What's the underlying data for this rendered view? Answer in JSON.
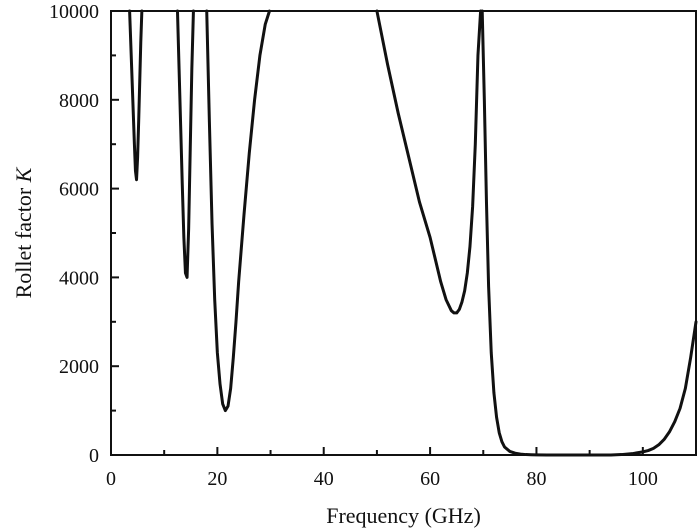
{
  "chart_data": {
    "type": "line",
    "title": "",
    "xlabel": "Frequency (GHz)",
    "ylabel_main": "Rollet factor ",
    "ylabel_var": "K",
    "xlim": [
      0,
      110
    ],
    "ylim": [
      0,
      10000
    ],
    "x_ticks": [
      "0",
      "20",
      "40",
      "60",
      "80",
      "100"
    ],
    "y_ticks": [
      "0",
      "2000",
      "4000",
      "6000",
      "8000",
      "10000"
    ],
    "grid": false,
    "colors": {
      "line": "#111111",
      "axes": "#111111",
      "background": "#ffffff"
    },
    "series": [
      {
        "name": "",
        "x": [
          3.5,
          3.8,
          4.1,
          4.4,
          4.6,
          4.8,
          5.0,
          5.2,
          5.4,
          5.6,
          5.8,
          null,
          12.5,
          12.8,
          13.1,
          13.4,
          13.7,
          14.0,
          14.3,
          14.6,
          14.9,
          15.2,
          15.5,
          null,
          18.0,
          18.5,
          19.0,
          19.5,
          20.0,
          20.5,
          21.0,
          21.5,
          22.0,
          22.5,
          23.0,
          23.5,
          24.0,
          25.0,
          26.0,
          27.0,
          28.0,
          29.0,
          29.8,
          null,
          50.0,
          52.0,
          54.0,
          56.0,
          58.0,
          60.0,
          61.0,
          62.0,
          63.0,
          64.0,
          64.5,
          65.0,
          65.5,
          66.0,
          66.5,
          67.0,
          67.5,
          68.0,
          68.5,
          69.0,
          69.5,
          null,
          69.8,
          70.2,
          70.6,
          71.0,
          71.5,
          72.0,
          72.5,
          73.0,
          73.5,
          74.0,
          75.0,
          76.0,
          77.0,
          78.0,
          79.0,
          80.0,
          82.0,
          85.0,
          88.0,
          91.0,
          94.0,
          96.0,
          98.0,
          100.0,
          101.0,
          102.0,
          103.0,
          104.0,
          105.0,
          106.0,
          107.0,
          108.0,
          109.0,
          110.0
        ],
        "y": [
          10000,
          9000,
          8000,
          7000,
          6400,
          6200,
          6700,
          7500,
          8400,
          9300,
          10000,
          null,
          10000,
          8700,
          7400,
          6100,
          4900,
          4100,
          4000,
          5100,
          6900,
          8700,
          10000,
          null,
          10000,
          7500,
          5200,
          3500,
          2300,
          1600,
          1150,
          1000,
          1100,
          1500,
          2200,
          3000,
          3900,
          5400,
          6800,
          8000,
          9000,
          9700,
          10000,
          null,
          10000,
          8800,
          7700,
          6700,
          5700,
          4900,
          4400,
          3900,
          3500,
          3250,
          3200,
          3200,
          3280,
          3450,
          3700,
          4100,
          4700,
          5600,
          7000,
          9000,
          10000,
          null,
          10000,
          8000,
          5700,
          3800,
          2300,
          1400,
          850,
          500,
          300,
          180,
          80,
          40,
          20,
          10,
          5,
          2,
          0,
          0,
          0,
          0,
          0,
          10,
          30,
          70,
          100,
          150,
          230,
          350,
          520,
          750,
          1050,
          1500,
          2200,
          3000
        ]
      }
    ]
  }
}
